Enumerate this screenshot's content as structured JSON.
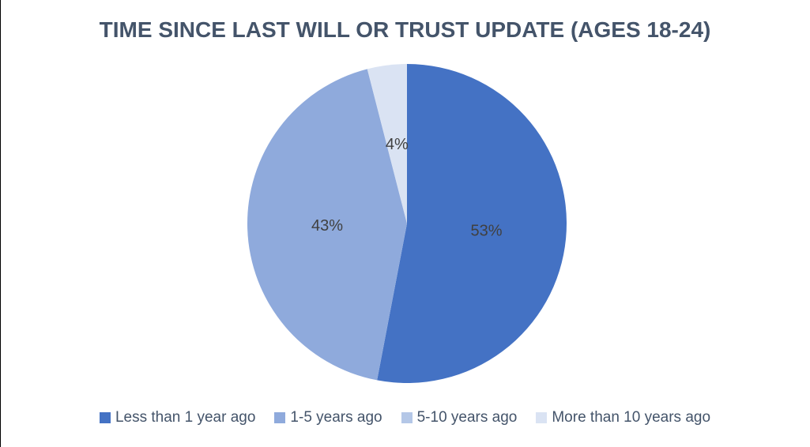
{
  "chart_data": {
    "type": "pie",
    "title": "TIME SINCE LAST WILL OR TRUST UPDATE (AGES 18-24)",
    "title_color": "#44546A",
    "categories": [
      "Less than 1 year ago",
      "1-5 years ago",
      "5-10 years ago",
      "More than 10 years ago"
    ],
    "values": [
      53,
      43,
      0,
      4
    ],
    "slice_labels": [
      "53%",
      "43%",
      "",
      "4%"
    ],
    "colors": [
      "#4472C4",
      "#8FAADC",
      "#B4C7E7",
      "#DAE3F3"
    ],
    "label_color": "#404040",
    "legend_position": "bottom",
    "legend_text_color": "#44546A",
    "start_angle_deg": 0,
    "direction": "clockwise",
    "background": "#FFFFFF"
  }
}
